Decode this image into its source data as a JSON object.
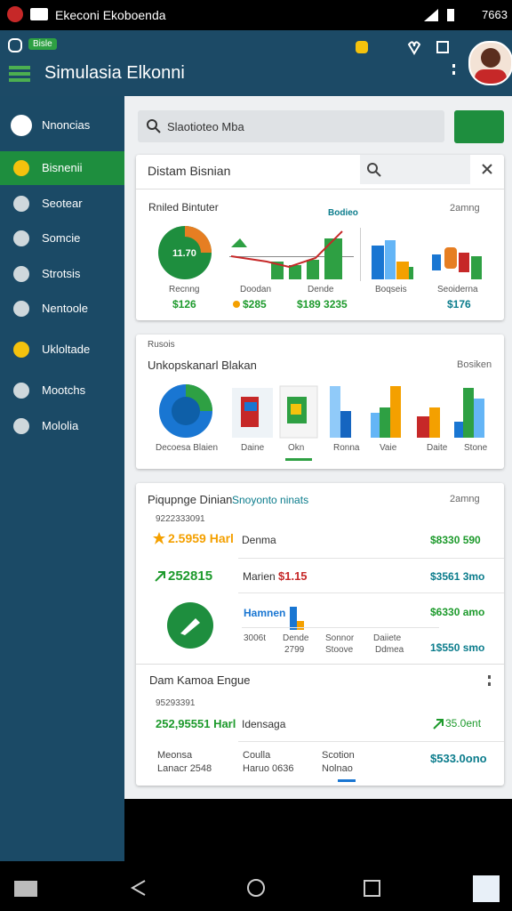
{
  "status_bar": {
    "app_name": "Ekeconi Ekoboenda",
    "time": "7663"
  },
  "header": {
    "badge": "Bisle",
    "title": "Simulasia Elkonni"
  },
  "sidebar": {
    "items": [
      "Nnoncias",
      "Bisnenii",
      "Seotear",
      "Somcie",
      "Strotsis",
      "Nentoole",
      "Ukloltade",
      "Mootchs",
      "Mololia"
    ]
  },
  "search": {
    "placeholder": "Slaotioteo Mba"
  },
  "card_1": {
    "title": "Distam Bisnian",
    "section": "Rniled Bintuter",
    "link": "Bodieo",
    "menu": "2amng",
    "donut_label": "11.70",
    "labels": [
      "Recnng",
      "Doodan",
      "Dende",
      "Boqseis",
      "Seoiderna"
    ],
    "values": [
      "$126",
      "$285",
      "$189 3235",
      "$176"
    ]
  },
  "card_2": {
    "caption": "Rusois",
    "title": "Unkopskanarl Blakan",
    "side": "Bosiken",
    "labels": [
      "Decoesa Blaien",
      "Daine",
      "Okn",
      "Ronna",
      "Vaie",
      "Daite",
      "Stone"
    ]
  },
  "card_3": {
    "title": "Piqupnge Dinian",
    "subtitle": "Snoyonto ninats",
    "menu": "2amng",
    "ref": "9222333091",
    "row_1": {
      "left": "2.5959 Harl",
      "middle": "Denma",
      "right": "$8330 590"
    },
    "row_2": {
      "left": "252815",
      "middle_label": "Marien",
      "middle_value": "$1.15",
      "right": "$3561 3mo"
    },
    "row_3": {
      "middle": "Hamnen",
      "right": "$6330 amo"
    },
    "row_4": {
      "labels": [
        "3006t",
        "Dende",
        "Sonnor",
        "Daiiete"
      ],
      "sublabels": [
        "2799",
        "Stoove",
        "Ddmea"
      ],
      "right": "1$550 smo"
    }
  },
  "card_4": {
    "title": "Dam Kamoa Engue",
    "ref": "95293391",
    "left": "252,95551 Harl",
    "middle": "Idensaga",
    "right": "35.0ent",
    "footer_labels": [
      "Meonsa",
      "Coulla",
      "Scotion"
    ],
    "footer_sublabels": [
      "Lanacr 2548",
      "Haruo 0636",
      "Nolnao"
    ],
    "footer_value": "$533.0ono"
  }
}
